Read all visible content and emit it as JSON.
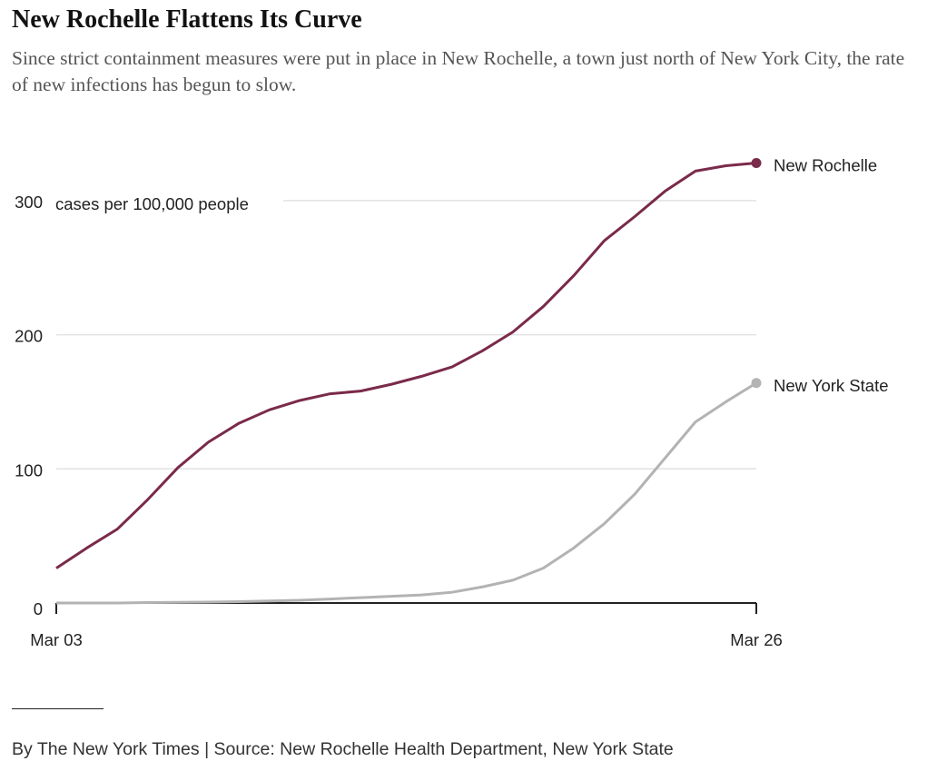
{
  "header": {
    "title": "New Rochelle Flattens Its Curve",
    "subtitle": "Since strict containment measures were put in place in New Rochelle, a town just north of New York City, the rate of new infections has begun to slow."
  },
  "footer": {
    "source": "By The New York Times | Source: New Rochelle Health Department, New York State"
  },
  "chart_data": {
    "type": "line",
    "title": "New Rochelle Flattens Its Curve",
    "ylabel": "cases per 100,000 people",
    "xlabel": "",
    "x_start": "Mar 03",
    "x_end": "Mar 26",
    "x_tick_labels": [
      "Mar 03",
      "Mar 26"
    ],
    "y_ticks": [
      0,
      100,
      200,
      300
    ],
    "y_tick_labels": [
      "0",
      "100",
      "200",
      "300"
    ],
    "ylim": [
      0,
      330
    ],
    "grid": true,
    "legend": "direct labels at line ends",
    "series": [
      {
        "name": "New Rochelle",
        "color": "#7a2a4a",
        "values": [
          26,
          41,
          55,
          77,
          101,
          120,
          134,
          144,
          151,
          156,
          158,
          163,
          169,
          176,
          188,
          202,
          221,
          244,
          270,
          288,
          307,
          322,
          326,
          328
        ]
      },
      {
        "name": "New York State",
        "color": "#b3b3b3",
        "values": [
          0,
          0,
          0,
          0.3,
          0.5,
          0.7,
          1,
          1.5,
          2,
          3,
          4,
          5,
          6,
          8,
          12,
          17,
          26,
          41,
          59,
          81,
          108,
          135,
          150,
          164
        ]
      }
    ]
  }
}
